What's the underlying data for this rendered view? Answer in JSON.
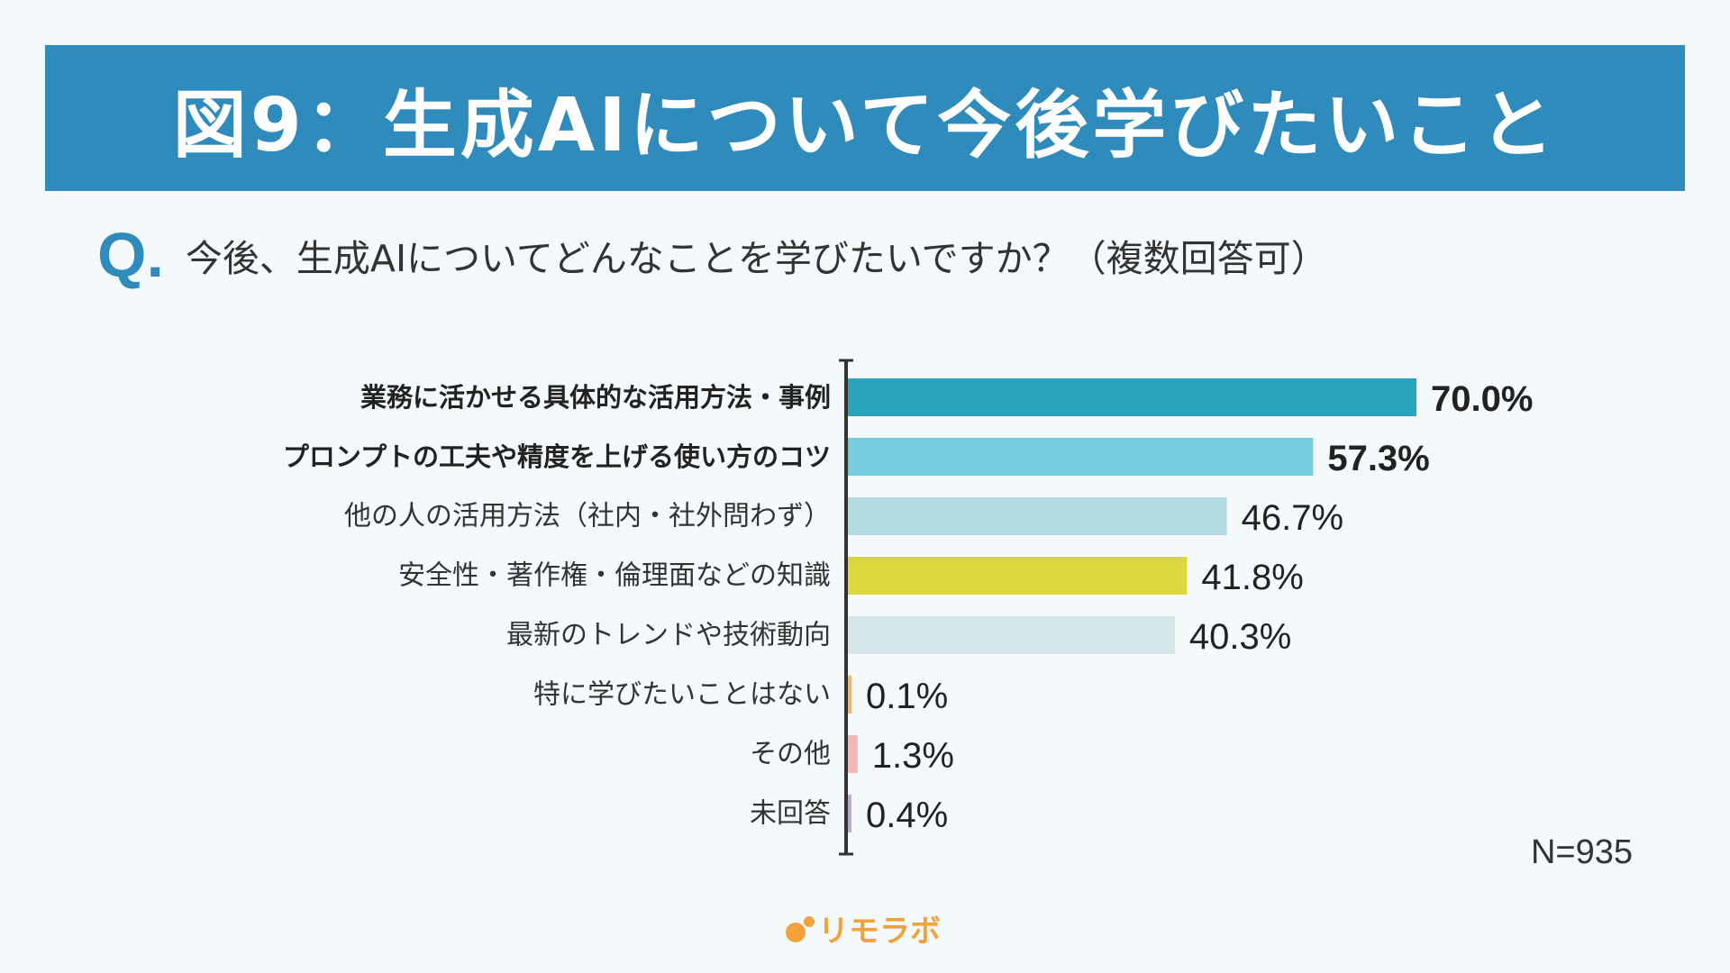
{
  "header": {
    "title": "図9：生成AIについて今後学びたいこと"
  },
  "question": {
    "mark": "Q.",
    "text": "今後、生成AIについてどんなことを学びたいですか？（複数回答可）"
  },
  "chart_data": {
    "type": "bar",
    "orientation": "horizontal",
    "unit": "%",
    "xlim": [
      0,
      70
    ],
    "grid": false,
    "categories": [
      "業務に活かせる具体的な活用方法・事例",
      "プロンプトの工夫や精度を上げる使い方のコツ",
      "他の人の活用方法（社内・社外問わず）",
      "安全性・著作権・倫理面などの知識",
      "最新のトレンドや技術動向",
      "特に学びたいことはない",
      "その他",
      "未回答"
    ],
    "values": [
      70.0,
      57.3,
      46.7,
      41.8,
      40.3,
      0.1,
      1.3,
      0.4
    ],
    "value_labels": [
      "70.0%",
      "57.3%",
      "46.7%",
      "41.8%",
      "40.3%",
      "0.1%",
      "1.3%",
      "0.4%"
    ],
    "colors": [
      "#2aa5bf",
      "#74cbdb",
      "#b2dbe1",
      "#dbd73d",
      "#d3e6ea",
      "#f0b36a",
      "#f4b7b4",
      "#b9a8d6"
    ],
    "bold": [
      true,
      true,
      false,
      false,
      false,
      false,
      false,
      false
    ]
  },
  "footer": {
    "sample_size": "N=935",
    "logo_text": "リモラボ"
  }
}
